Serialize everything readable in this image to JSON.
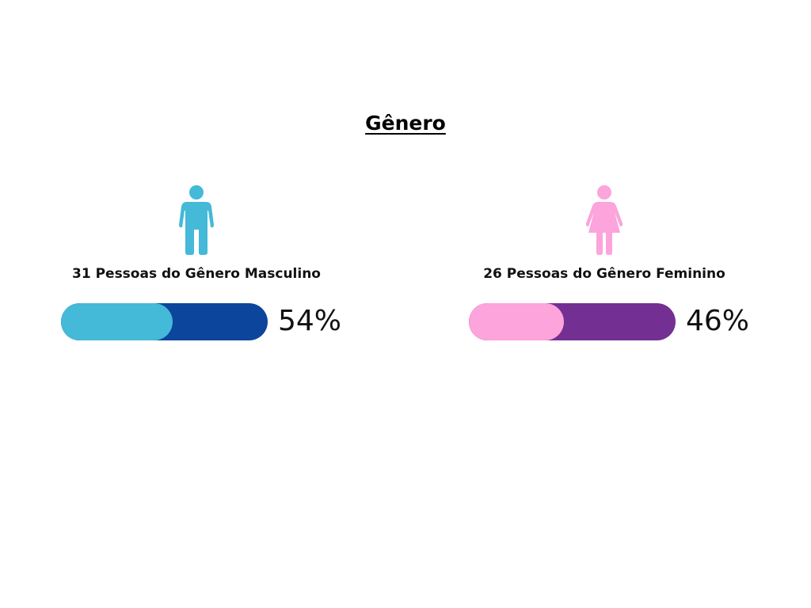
{
  "title": "Gênero",
  "colors": {
    "male_fill": "#44b9d8",
    "male_track": "#0c459c",
    "female_fill": "#fca4db",
    "female_track": "#742f92"
  },
  "chart_data": {
    "type": "bar",
    "title": "Gênero",
    "categories": [
      "Masculino",
      "Feminino"
    ],
    "series": [
      {
        "values": [
          54,
          46
        ]
      }
    ],
    "ylim": [
      0,
      100
    ],
    "annotations": [
      "31 Pessoas do Gênero Masculino",
      "26 Pessoas do Gênero Feminino"
    ]
  },
  "groups": {
    "male": {
      "icon": "male-person-icon",
      "label": "31 Pessoas do Gênero Masculino",
      "percent_label": "54%",
      "percent": 54
    },
    "female": {
      "icon": "female-person-icon",
      "label": "26 Pessoas do Gênero Feminino",
      "percent_label": "46%",
      "percent": 46
    }
  }
}
